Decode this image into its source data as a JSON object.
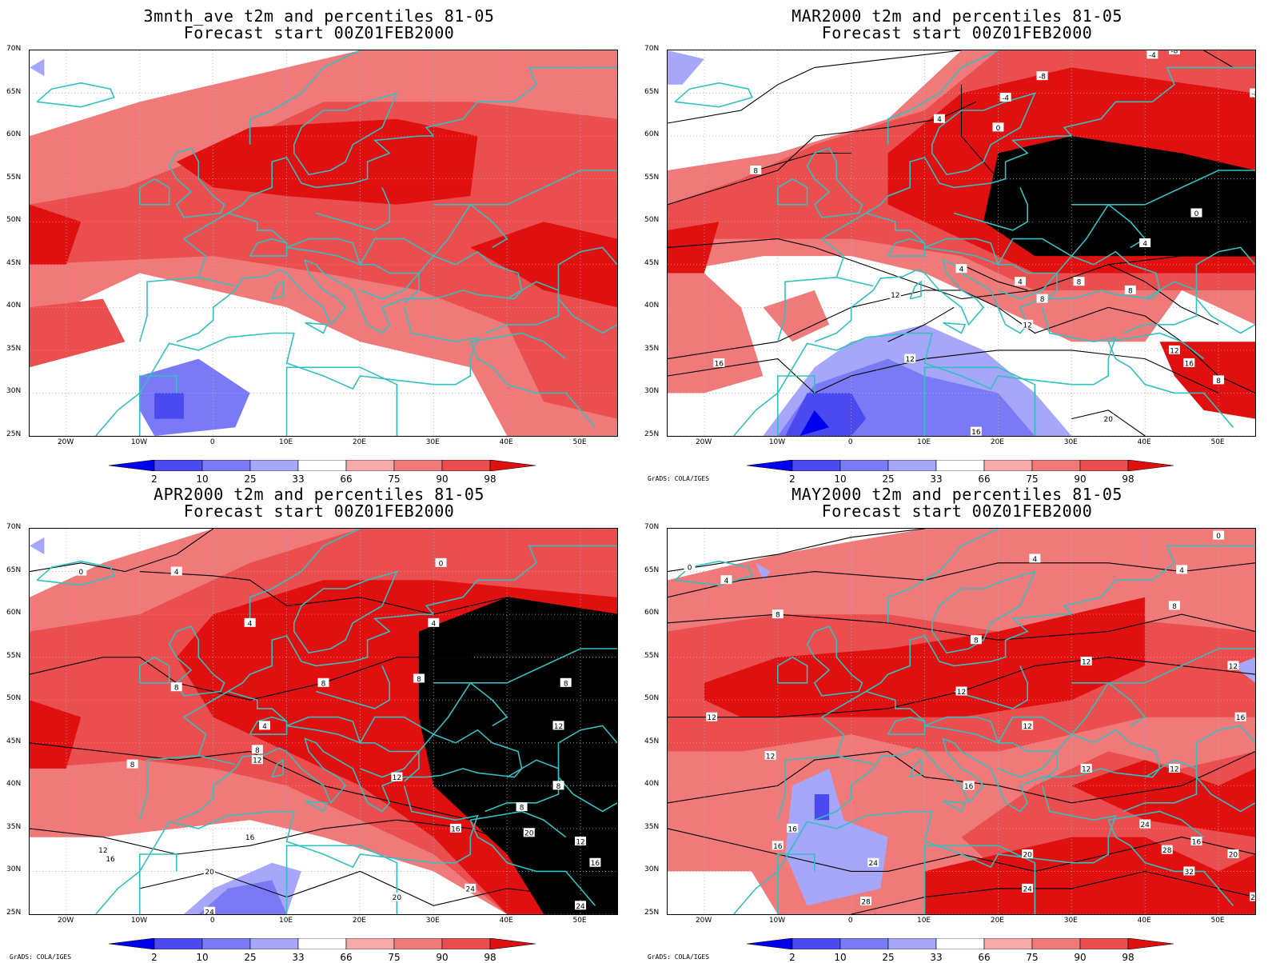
{
  "panels": [
    {
      "title_line1": "3mnth_ave t2m and percentiles 81-05",
      "title_line2": "Forecast start 00Z01FEB2000",
      "credit": "",
      "contour_labels": []
    },
    {
      "title_line1": "MAR2000 t2m and percentiles 81-05",
      "title_line2": "Forecast start 00Z01FEB2000",
      "credit": "GrADS: COLA/IGES",
      "contour_labels": [
        "-8",
        "-4",
        "0",
        "4",
        "8",
        "12",
        "16",
        "20"
      ]
    },
    {
      "title_line1": "APR2000 t2m and percentiles 81-05",
      "title_line2": "Forecast start 00Z01FEB2000",
      "credit": "GrADS: COLA/IGES",
      "contour_labels": [
        "0",
        "4",
        "8",
        "12",
        "16",
        "20",
        "24"
      ]
    },
    {
      "title_line1": "MAY2000 t2m and percentiles 81-05",
      "title_line2": "Forecast start 00Z01FEB2000",
      "credit": "GrADS: COLA/IGES",
      "contour_labels": [
        "0",
        "4",
        "8",
        "12",
        "16",
        "20",
        "24",
        "28",
        "32"
      ]
    }
  ],
  "lat_labels": [
    "70N",
    "65N",
    "60N",
    "55N",
    "50N",
    "45N",
    "40N",
    "35N",
    "30N",
    "25N"
  ],
  "lon_labels": [
    "20W",
    "10W",
    "0",
    "10E",
    "20E",
    "30E",
    "40E",
    "50E"
  ],
  "colorbar": {
    "labels": [
      "2",
      "10",
      "25",
      "33",
      "66",
      "75",
      "90",
      "98"
    ],
    "colors": [
      "#0000ee",
      "#4a4af0",
      "#7a7af6",
      "#a6a6fa",
      "#ffffff",
      "#f7a9a9",
      "#f07a7a",
      "#ea4e4e",
      "#e01010"
    ]
  },
  "colors": {
    "coast": "#33c0c0",
    "contour": "#000000",
    "grid": "#b0b0b0"
  }
}
